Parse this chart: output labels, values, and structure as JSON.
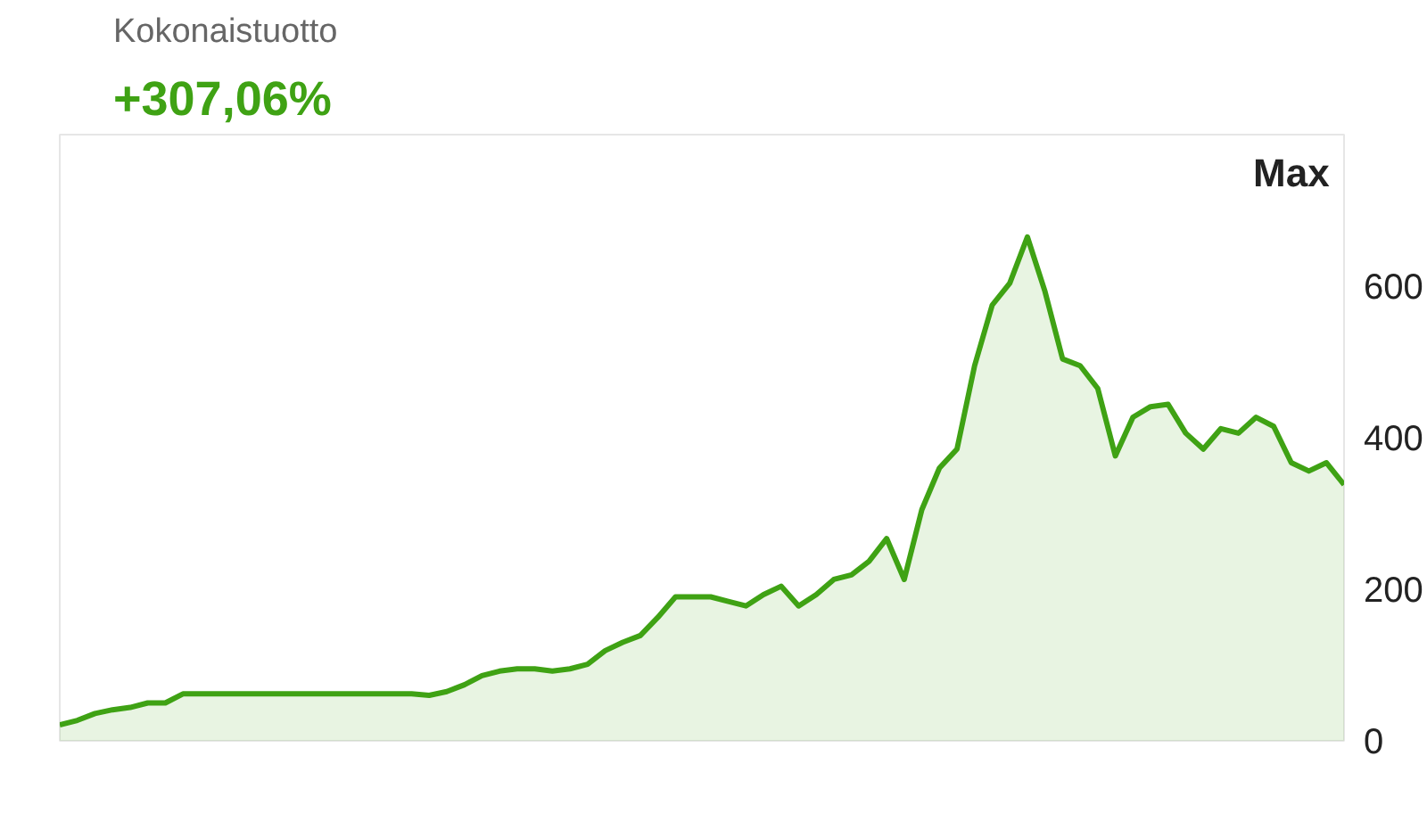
{
  "chart_data": {
    "type": "area",
    "title": "Kokonaistuotto",
    "subtitle": "+307,06%",
    "annotations": [
      "Max"
    ],
    "categories": [
      null,
      null,
      null,
      null,
      null,
      null,
      null,
      null,
      null,
      null,
      null,
      null,
      null,
      null,
      null,
      null,
      null,
      null,
      null,
      null,
      null,
      null,
      null,
      null,
      null,
      null,
      null,
      null,
      null,
      null,
      null,
      null,
      null,
      null,
      null,
      null,
      null,
      null,
      null,
      null,
      null,
      null,
      null,
      null,
      null,
      null,
      null,
      null,
      null,
      null,
      null,
      null,
      null,
      null,
      null,
      null,
      null,
      null,
      null,
      null,
      null,
      null,
      null,
      null,
      null,
      null,
      null,
      null,
      null,
      null,
      null,
      null,
      null,
      null
    ],
    "series": [
      {
        "color": "#3fa214",
        "values": [
          21,
          27,
          36,
          41,
          44,
          50,
          50,
          62,
          62,
          62,
          62,
          62,
          62,
          62,
          62,
          62,
          62,
          62,
          62,
          62,
          62,
          60,
          65,
          74,
          86,
          92,
          95,
          95,
          92,
          95,
          101,
          119,
          130,
          139,
          163,
          190,
          190,
          190,
          184,
          178,
          193,
          204,
          178,
          193,
          213,
          219,
          237,
          267,
          213,
          305,
          360,
          385,
          495,
          575,
          604,
          665,
          593,
          504,
          495,
          465,
          376,
          427,
          441,
          444,
          406,
          385,
          412,
          406,
          427,
          415,
          367,
          356,
          367,
          338
        ]
      }
    ],
    "ylim": [
      0,
      800
    ],
    "yticks": [
      0,
      200,
      400,
      600
    ],
    "grid": false,
    "marker": "none",
    "line_style": "solid"
  }
}
